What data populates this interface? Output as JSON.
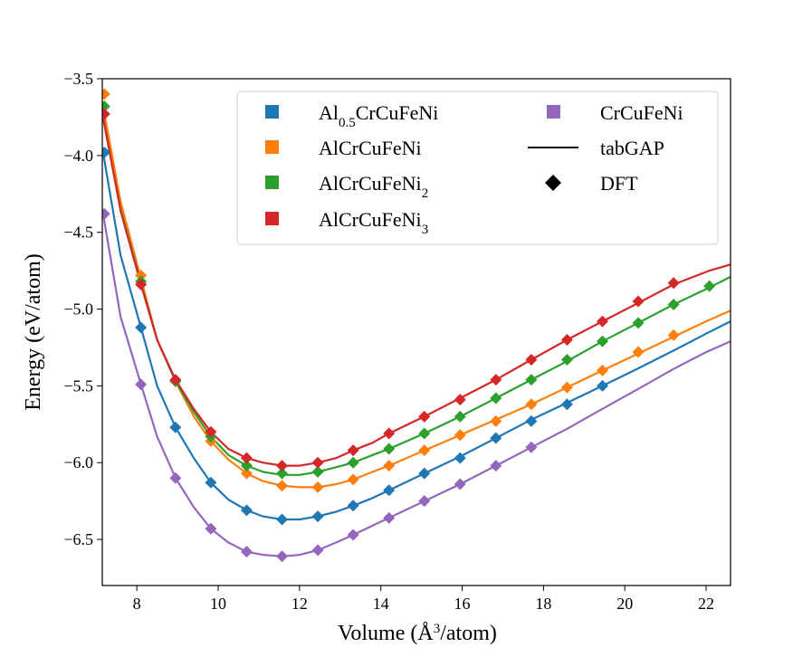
{
  "chart_data": {
    "type": "line",
    "title": "",
    "xlabel_prefix": "Volume (Å",
    "xlabel_sup": "3",
    "xlabel_suffix": "/atom)",
    "ylabel": "Energy (eV/atom)",
    "xlim": [
      7.15,
      22.6
    ],
    "ylim": [
      -6.8,
      -3.5
    ],
    "x_ticks": [
      8,
      10,
      12,
      14,
      16,
      18,
      20,
      22
    ],
    "y_ticks": [
      -6.5,
      -6.0,
      -5.5,
      -5.0,
      -4.5,
      -4.0,
      -3.5
    ],
    "y_tick_labels": [
      "−6.5",
      "−6.0",
      "−5.5",
      "−5.0",
      "−4.5",
      "−4.0",
      "−3.5"
    ],
    "legend_position": "top-right",
    "legend": {
      "style_entries": [
        {
          "label": "tabGAP",
          "marker": "line"
        },
        {
          "label": "DFT",
          "marker": "diamond"
        }
      ]
    },
    "series": [
      {
        "name": "Al0.5CrCuFeNi",
        "name_base": "Al",
        "name_sub": "0.5",
        "name_rest": "CrCuFeNi",
        "color": "#1f77b4",
        "dft_x": [
          7.2,
          8.1,
          8.95,
          9.82,
          10.7,
          11.57,
          12.45,
          13.32,
          14.2,
          15.07,
          15.95,
          16.83,
          17.7,
          18.58,
          19.45
        ],
        "dft_y": [
          -3.98,
          -5.12,
          -5.77,
          -6.13,
          -6.31,
          -6.37,
          -6.35,
          -6.28,
          -6.18,
          -6.07,
          -5.97,
          -5.84,
          -5.73,
          -5.62,
          -5.5
        ],
        "gap_x": [
          7.15,
          7.6,
          8.1,
          8.5,
          8.95,
          9.4,
          9.82,
          10.25,
          10.7,
          11.1,
          11.57,
          12.0,
          12.45,
          12.9,
          13.32,
          13.8,
          14.2,
          15.07,
          15.95,
          16.83,
          17.7,
          18.58,
          19.45,
          20.3,
          21.2,
          22.0,
          22.6
        ],
        "gap_y": [
          -3.95,
          -4.65,
          -5.12,
          -5.5,
          -5.77,
          -5.97,
          -6.13,
          -6.24,
          -6.31,
          -6.35,
          -6.37,
          -6.37,
          -6.35,
          -6.32,
          -6.28,
          -6.23,
          -6.18,
          -6.07,
          -5.96,
          -5.84,
          -5.72,
          -5.61,
          -5.5,
          -5.39,
          -5.27,
          -5.16,
          -5.08
        ]
      },
      {
        "name": "AlCrCuFeNi",
        "color": "#ff7f0e",
        "dft_x": [
          7.2,
          8.1,
          8.95,
          9.82,
          10.7,
          11.57,
          12.45,
          13.32,
          14.2,
          15.07,
          15.95,
          16.83,
          17.7,
          18.58,
          19.45,
          20.33,
          21.2
        ],
        "dft_y": [
          -3.6,
          -4.78,
          -5.47,
          -5.86,
          -6.07,
          -6.15,
          -6.16,
          -6.11,
          -6.02,
          -5.92,
          -5.82,
          -5.73,
          -5.62,
          -5.51,
          -5.4,
          -5.28,
          -5.17
        ],
        "gap_x": [
          7.15,
          7.6,
          8.1,
          8.5,
          8.95,
          9.4,
          9.82,
          10.25,
          10.7,
          11.1,
          11.57,
          12.0,
          12.45,
          12.9,
          13.32,
          13.8,
          14.2,
          15.07,
          15.95,
          16.83,
          17.7,
          18.58,
          19.45,
          20.33,
          21.2,
          22.0,
          22.6
        ],
        "gap_y": [
          -3.65,
          -4.3,
          -4.8,
          -5.2,
          -5.47,
          -5.7,
          -5.86,
          -5.98,
          -6.07,
          -6.12,
          -6.15,
          -6.16,
          -6.16,
          -6.14,
          -6.11,
          -6.06,
          -6.02,
          -5.92,
          -5.82,
          -5.72,
          -5.62,
          -5.51,
          -5.4,
          -5.29,
          -5.18,
          -5.08,
          -5.01
        ]
      },
      {
        "name": "AlCrCuFeNi2",
        "name_base": "AlCrCuFeNi",
        "name_sub": "2",
        "name_rest": "",
        "color": "#2ca02c",
        "dft_x": [
          7.2,
          8.1,
          8.95,
          9.82,
          10.7,
          11.57,
          12.45,
          13.32,
          14.2,
          15.07,
          15.95,
          16.83,
          17.7,
          18.58,
          19.45,
          20.33,
          21.2,
          22.08
        ],
        "dft_y": [
          -3.68,
          -4.82,
          -5.47,
          -5.83,
          -6.02,
          -6.07,
          -6.06,
          -6.0,
          -5.91,
          -5.81,
          -5.7,
          -5.58,
          -5.46,
          -5.33,
          -5.21,
          -5.09,
          -4.97,
          -4.85
        ],
        "gap_x": [
          7.15,
          7.6,
          8.1,
          8.5,
          8.95,
          9.4,
          9.82,
          10.25,
          10.7,
          11.1,
          11.57,
          12.0,
          12.45,
          12.9,
          13.32,
          13.8,
          14.2,
          15.07,
          15.95,
          16.83,
          17.7,
          18.58,
          19.45,
          20.33,
          21.2,
          22.08,
          22.6
        ],
        "gap_y": [
          -3.73,
          -4.35,
          -4.83,
          -5.2,
          -5.47,
          -5.67,
          -5.83,
          -5.95,
          -6.02,
          -6.06,
          -6.08,
          -6.08,
          -6.06,
          -6.03,
          -6.0,
          -5.95,
          -5.91,
          -5.81,
          -5.7,
          -5.58,
          -5.46,
          -5.34,
          -5.21,
          -5.09,
          -4.97,
          -4.86,
          -4.79
        ]
      },
      {
        "name": "AlCrCuFeNi3",
        "name_base": "AlCrCuFeNi",
        "name_sub": "3",
        "name_rest": "",
        "color": "#d62728",
        "dft_x": [
          7.2,
          8.1,
          8.95,
          9.82,
          10.7,
          11.57,
          12.45,
          13.32,
          14.2,
          15.07,
          15.95,
          16.83,
          17.7,
          18.58,
          19.45,
          20.33,
          21.2
        ],
        "dft_y": [
          -3.73,
          -4.84,
          -5.46,
          -5.8,
          -5.97,
          -6.02,
          -6.0,
          -5.92,
          -5.81,
          -5.7,
          -5.59,
          -5.46,
          -5.33,
          -5.2,
          -5.08,
          -4.95,
          -4.83
        ],
        "gap_x": [
          7.15,
          7.6,
          8.1,
          8.5,
          8.95,
          9.4,
          9.82,
          10.25,
          10.7,
          11.1,
          11.57,
          12.0,
          12.45,
          12.9,
          13.32,
          13.8,
          14.2,
          15.07,
          15.95,
          16.83,
          17.7,
          18.58,
          19.45,
          20.33,
          21.2,
          22.08,
          22.6
        ],
        "gap_y": [
          -3.72,
          -4.36,
          -4.84,
          -5.2,
          -5.46,
          -5.65,
          -5.8,
          -5.91,
          -5.97,
          -6.0,
          -6.02,
          -6.02,
          -6.0,
          -5.97,
          -5.92,
          -5.87,
          -5.81,
          -5.7,
          -5.58,
          -5.46,
          -5.33,
          -5.2,
          -5.08,
          -4.96,
          -4.84,
          -4.75,
          -4.71
        ]
      },
      {
        "name": "CrCuFeNi",
        "color": "#9467bd",
        "dft_x": [
          7.2,
          8.1,
          8.95,
          9.82,
          10.7,
          11.57,
          12.45,
          13.32,
          14.2,
          15.07,
          15.95,
          16.83,
          17.7
        ],
        "dft_y": [
          -4.38,
          -5.49,
          -6.1,
          -6.43,
          -6.58,
          -6.61,
          -6.57,
          -6.47,
          -6.36,
          -6.25,
          -6.14,
          -6.02,
          -5.9
        ],
        "gap_x": [
          7.15,
          7.6,
          8.1,
          8.5,
          8.95,
          9.4,
          9.82,
          10.25,
          10.7,
          11.1,
          11.57,
          12.0,
          12.45,
          12.9,
          13.32,
          13.8,
          14.2,
          15.07,
          15.95,
          16.83,
          17.7,
          18.58,
          19.45,
          20.33,
          21.2,
          22.0,
          22.6
        ],
        "gap_y": [
          -4.35,
          -5.05,
          -5.49,
          -5.83,
          -6.1,
          -6.29,
          -6.43,
          -6.52,
          -6.58,
          -6.6,
          -6.61,
          -6.6,
          -6.57,
          -6.52,
          -6.47,
          -6.41,
          -6.36,
          -6.25,
          -6.14,
          -6.02,
          -5.9,
          -5.78,
          -5.65,
          -5.52,
          -5.39,
          -5.28,
          -5.21
        ]
      }
    ]
  }
}
